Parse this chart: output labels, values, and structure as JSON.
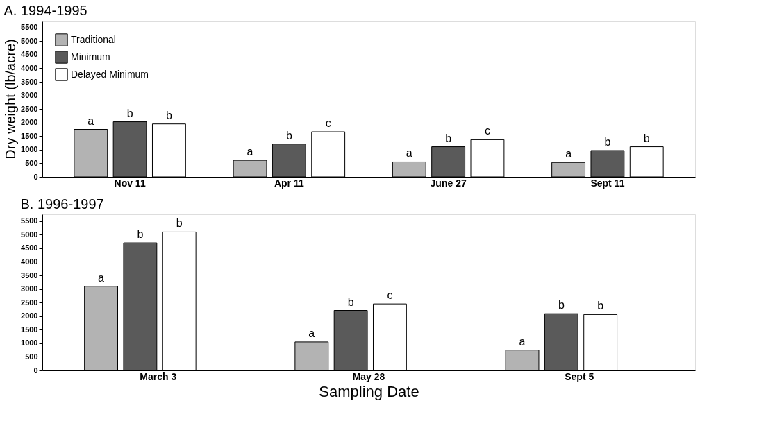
{
  "chart_data": [
    {
      "type": "bar",
      "title": "A. 1994-1995",
      "ylabel": "Dry weight (lb/acre)",
      "categories": [
        "Nov 11",
        "Apr 11",
        "June 27",
        "Sept 11"
      ],
      "series": [
        {
          "name": "Traditional",
          "color": "#b3b3b3",
          "values": [
            1750,
            610,
            550,
            530
          ],
          "value_labels": [
            "a",
            "a",
            "a",
            "a"
          ]
        },
        {
          "name": "Minimum",
          "color": "#5a5a5a",
          "values": [
            2030,
            1210,
            1110,
            970
          ],
          "value_labels": [
            "b",
            "b",
            "b",
            "b"
          ]
        },
        {
          "name": "Delayed Minimum",
          "color": "#ffffff",
          "values": [
            1950,
            1660,
            1370,
            1110
          ],
          "value_labels": [
            "b",
            "c",
            "c",
            "b"
          ]
        }
      ],
      "ylim": [
        0,
        5750
      ],
      "yticks": [
        0,
        500,
        1000,
        1500,
        2000,
        2500,
        3000,
        3500,
        4000,
        4500,
        5000,
        5500
      ],
      "legend": "top left"
    },
    {
      "type": "bar",
      "title": "B. 1996-1997",
      "xlabel": "Sampling Date",
      "categories": [
        "March 3",
        "May 28",
        "Sept 5"
      ],
      "series": [
        {
          "name": "Traditional",
          "color": "#b3b3b3",
          "values": [
            3100,
            1050,
            750
          ],
          "value_labels": [
            "a",
            "a",
            "a"
          ]
        },
        {
          "name": "Minimum",
          "color": "#5a5a5a",
          "values": [
            4700,
            2210,
            2090
          ],
          "value_labels": [
            "b",
            "b",
            "b"
          ]
        },
        {
          "name": "Delayed Minimum",
          "color": "#ffffff",
          "values": [
            5100,
            2450,
            2060
          ],
          "value_labels": [
            "b",
            "c",
            "b"
          ]
        }
      ],
      "ylim": [
        0,
        5750
      ],
      "yticks": [
        0,
        500,
        1000,
        1500,
        2000,
        2500,
        3000,
        3500,
        4000,
        4500,
        5000,
        5500
      ]
    }
  ]
}
